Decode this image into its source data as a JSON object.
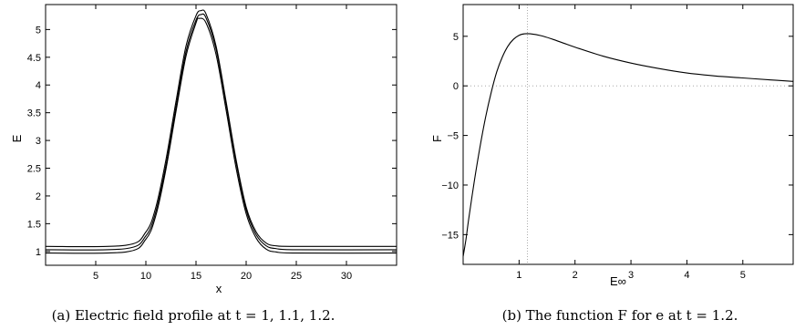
{
  "chart_data": [
    {
      "type": "line",
      "xlabel": "x",
      "ylabel": "E",
      "xlim": [
        0,
        35
      ],
      "ylim": [
        0.75,
        5.45
      ],
      "xticks": [
        5,
        10,
        15,
        20,
        25,
        30
      ],
      "yticks": [
        1,
        1.5,
        2,
        2.5,
        3,
        3.5,
        4,
        4.5,
        5
      ],
      "grid": false,
      "caption": "(a) Electric field profile at t = 1, 1.1, 1.2.",
      "series": [
        {
          "baseline": 1.09,
          "x": [
            0,
            8,
            10,
            11,
            12,
            13,
            14,
            15,
            15.5,
            16,
            17,
            18,
            19,
            20,
            21,
            22,
            23,
            25,
            35
          ],
          "values": [
            1.09,
            1.11,
            1.35,
            1.8,
            2.65,
            3.7,
            4.7,
            5.25,
            5.34,
            5.28,
            4.7,
            3.7,
            2.65,
            1.8,
            1.35,
            1.15,
            1.1,
            1.09,
            1.09
          ]
        },
        {
          "baseline": 1.03,
          "x": [
            0,
            8,
            10,
            11,
            12,
            13,
            14,
            15,
            15.5,
            16,
            17,
            18,
            19,
            20,
            21,
            22,
            23,
            25,
            35
          ],
          "values": [
            1.03,
            1.05,
            1.28,
            1.72,
            2.55,
            3.6,
            4.6,
            5.17,
            5.27,
            5.21,
            4.65,
            3.65,
            2.6,
            1.75,
            1.3,
            1.1,
            1.05,
            1.03,
            1.03
          ]
        },
        {
          "baseline": 0.97,
          "x": [
            0,
            8,
            10,
            11,
            12,
            13,
            14,
            15,
            15.3,
            16,
            17,
            18,
            19,
            20,
            21,
            22,
            23,
            25,
            35
          ],
          "values": [
            0.97,
            0.99,
            1.22,
            1.65,
            2.48,
            3.52,
            4.52,
            5.12,
            5.2,
            5.12,
            4.55,
            3.55,
            2.5,
            1.68,
            1.24,
            1.04,
            0.99,
            0.97,
            0.97
          ]
        }
      ]
    },
    {
      "type": "line",
      "xlabel": "E∞",
      "ylabel": "F",
      "xlim": [
        0,
        5.9
      ],
      "ylim": [
        -18,
        8.2
      ],
      "xticks": [
        1,
        2,
        3,
        4,
        5
      ],
      "yticks": [
        5,
        0,
        -5,
        -10,
        -15
      ],
      "ytick_labels": [
        "5",
        "0",
        "−5",
        "−10",
        "−15"
      ],
      "grid": false,
      "caption": "(b) The function F for e at t = 1.2.",
      "reference_lines": {
        "zero_line": 0,
        "vertical_at_x": 1.15
      },
      "series": [
        {
          "x": [
            0,
            0.05,
            0.1,
            0.2,
            0.3,
            0.4,
            0.5,
            0.6,
            0.7,
            0.8,
            0.9,
            1.0,
            1.1,
            1.2,
            1.4,
            1.6,
            1.8,
            2.0,
            2.5,
            3.0,
            3.5,
            4.0,
            4.5,
            5.0,
            5.5,
            5.9
          ],
          "values": [
            -17.2,
            -15.5,
            -13.4,
            -9.6,
            -6.2,
            -3.2,
            -0.7,
            1.4,
            2.9,
            4.0,
            4.7,
            5.1,
            5.25,
            5.25,
            5.05,
            4.7,
            4.3,
            3.9,
            3.0,
            2.3,
            1.75,
            1.3,
            1.0,
            0.8,
            0.6,
            0.45
          ]
        }
      ]
    }
  ]
}
